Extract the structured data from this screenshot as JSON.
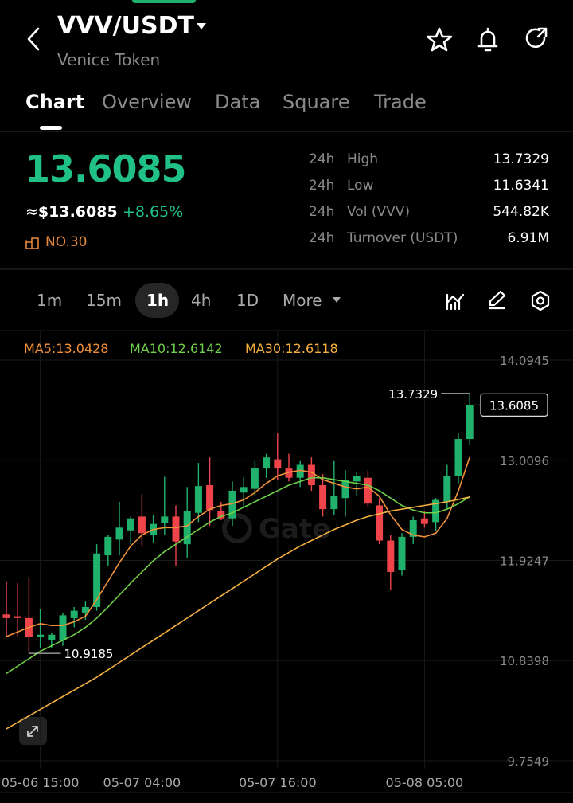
{
  "header": {
    "pair": "VVV/USDT",
    "name": "Venice Token"
  },
  "tabs": [
    "Chart",
    "Overview",
    "Data",
    "Square",
    "Trade"
  ],
  "ticker": {
    "price": "13.6085",
    "usd": "≈$13.6085",
    "change": "+8.65%",
    "rank": "NO.30",
    "stats": [
      {
        "period": "24h",
        "label": "High",
        "value": "13.7329"
      },
      {
        "period": "24h",
        "label": "Low",
        "value": "11.6341"
      },
      {
        "period": "24h",
        "label": "Vol (VVV)",
        "value": "544.82K"
      },
      {
        "period": "24h",
        "label": "Turnover (USDT)",
        "value": "6.91M"
      }
    ]
  },
  "intervals": [
    "1m",
    "15m",
    "1h",
    "4h",
    "1D",
    "More"
  ],
  "watermark": "Gate",
  "chart_data": {
    "type": "candlestick",
    "categories": [
      null,
      null,
      null,
      "05-06 15:00",
      null,
      null,
      null,
      null,
      null,
      null,
      null,
      null,
      "05-07 04:00",
      null,
      null,
      null,
      null,
      null,
      null,
      null,
      null,
      null,
      null,
      null,
      "05-07 16:00",
      null,
      null,
      null,
      null,
      null,
      null,
      null,
      null,
      null,
      null,
      null,
      null,
      "05-08 05:00",
      null,
      null,
      null,
      null
    ],
    "open": [
      11.34,
      11.32,
      11.3,
      11.1,
      11.06,
      11.06,
      11.3,
      11.36,
      11.42,
      11.98,
      12.15,
      12.25,
      12.4,
      12.2,
      12.33,
      12.4,
      12.1,
      12.44,
      12.74,
      12.46,
      12.38,
      12.66,
      12.7,
      12.92,
      13.02,
      12.92,
      12.82,
      12.96,
      12.74,
      12.48,
      12.6,
      12.78,
      12.82,
      12.52,
      12.14,
      11.82,
      12.18,
      12.38,
      12.34,
      12.56,
      12.84,
      13.24
    ],
    "high": [
      11.7,
      11.68,
      11.74,
      11.4,
      11.14,
      11.36,
      11.42,
      11.48,
      12.1,
      12.2,
      12.56,
      12.4,
      12.64,
      12.42,
      12.83,
      12.52,
      12.72,
      12.98,
      13.04,
      12.56,
      12.78,
      12.82,
      13.0,
      13.08,
      13.3,
      13.08,
      13.0,
      13.04,
      12.86,
      13.0,
      12.9,
      12.88,
      12.9,
      12.6,
      12.2,
      12.22,
      12.4,
      12.46,
      12.6,
      12.96,
      13.3,
      13.7329
    ],
    "low": [
      11.09,
      11.1,
      10.9185,
      10.98,
      10.98,
      11.0,
      11.2,
      11.28,
      11.38,
      11.86,
      11.98,
      12.1,
      12.08,
      12.12,
      12.2,
      11.86,
      11.95,
      12.34,
      12.3,
      12.36,
      12.3,
      12.5,
      12.62,
      12.82,
      12.8,
      12.78,
      12.72,
      12.68,
      12.4,
      12.42,
      12.4,
      12.62,
      12.5,
      12.1,
      11.6,
      11.76,
      12.1,
      12.28,
      12.24,
      12.48,
      12.76,
      13.18
    ],
    "close": [
      11.3,
      11.3,
      11.1,
      11.12,
      11.12,
      11.33,
      11.38,
      11.42,
      12.0,
      12.18,
      12.28,
      12.38,
      12.22,
      12.32,
      12.4,
      12.13,
      12.46,
      12.73,
      12.47,
      12.38,
      12.68,
      12.72,
      12.93,
      13.04,
      12.92,
      12.82,
      12.96,
      12.74,
      12.48,
      12.62,
      12.8,
      12.84,
      12.54,
      12.14,
      11.8,
      12.18,
      12.36,
      12.32,
      12.58,
      12.84,
      13.24,
      13.6085
    ],
    "up_color": "#20b26c",
    "down_color": "#ef454a",
    "series": [
      {
        "name": "MA5",
        "label": "MA5:13.0428",
        "color": "#f0913a",
        "values": [
          11.1,
          11.15,
          11.2,
          11.24,
          11.22,
          11.22,
          11.26,
          11.32,
          11.5,
          11.7,
          11.9,
          12.08,
          12.2,
          12.26,
          12.28,
          12.28,
          12.3,
          12.4,
          12.48,
          12.52,
          12.54,
          12.58,
          12.66,
          12.76,
          12.84,
          12.88,
          12.9,
          12.88,
          12.8,
          12.76,
          12.72,
          12.7,
          12.72,
          12.62,
          12.42,
          12.26,
          12.2,
          12.18,
          12.22,
          12.38,
          12.68,
          13.0428
        ]
      },
      {
        "name": "MA10",
        "label": "MA10:12.6142",
        "color": "#6fcf48",
        "values": [
          10.7,
          10.78,
          10.86,
          10.94,
          11.0,
          11.06,
          11.12,
          11.2,
          11.3,
          11.42,
          11.55,
          11.68,
          11.8,
          11.92,
          12.02,
          12.1,
          12.18,
          12.26,
          12.34,
          12.4,
          12.44,
          12.5,
          12.56,
          12.62,
          12.68,
          12.74,
          12.78,
          12.82,
          12.82,
          12.8,
          12.78,
          12.76,
          12.74,
          12.68,
          12.6,
          12.52,
          12.47,
          12.44,
          12.44,
          12.48,
          12.54,
          12.6142
        ]
      },
      {
        "name": "MA30",
        "label": "MA30:12.6118",
        "color": "#f5b041",
        "values": [
          10.1,
          10.17,
          10.24,
          10.31,
          10.38,
          10.45,
          10.52,
          10.59,
          10.66,
          10.74,
          10.82,
          10.9,
          10.98,
          11.06,
          11.14,
          11.22,
          11.3,
          11.38,
          11.46,
          11.54,
          11.62,
          11.7,
          11.78,
          11.86,
          11.94,
          12.01,
          12.08,
          12.14,
          12.2,
          12.26,
          12.31,
          12.36,
          12.4,
          12.43,
          12.46,
          12.48,
          12.5,
          12.52,
          12.54,
          12.56,
          12.585,
          12.6118
        ]
      }
    ],
    "annotations": {
      "high": "13.7329",
      "low": "10.9185",
      "last": "13.6085"
    },
    "ylim": [
      9.668,
      14.414
    ],
    "yticks": [
      14.0945,
      13.0096,
      11.9247,
      10.8398,
      9.7549
    ],
    "grid": true
  }
}
